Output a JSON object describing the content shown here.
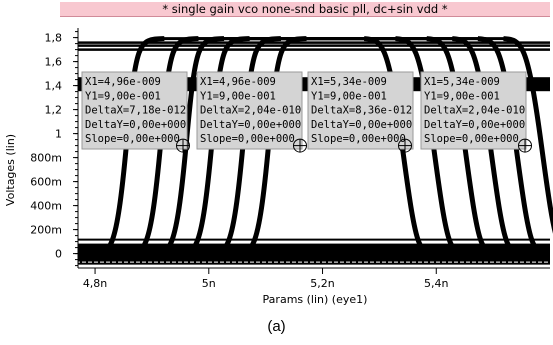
{
  "chart_data": {
    "type": "line",
    "title": "* single gain vco none-snd basic pll, dc+sin vdd *",
    "xlabel": "Params (lin) (eye1)",
    "ylabel": "Voltages (lin)",
    "xlim": [
      4.77e-09,
      5.6e-09
    ],
    "ylim": [
      -0.12,
      1.88
    ],
    "x_scale": "linear",
    "y_scale": "linear",
    "grid": false,
    "legend": "none",
    "x_ticks": [
      {
        "value": 4.8e-09,
        "label": "4,8n"
      },
      {
        "value": 5e-09,
        "label": "5n"
      },
      {
        "value": 5.2e-09,
        "label": "5,2n"
      },
      {
        "value": 5.4e-09,
        "label": "5,4n"
      }
    ],
    "y_ticks": [
      {
        "value": 1.8,
        "label": "1,8"
      },
      {
        "value": 1.6,
        "label": "1,6"
      },
      {
        "value": 1.4,
        "label": "1,4"
      },
      {
        "value": 1.2,
        "label": "1,2"
      },
      {
        "value": 1.0,
        "label": "1"
      },
      {
        "value": 0.8,
        "label": "800m"
      },
      {
        "value": 0.6,
        "label": "600m"
      },
      {
        "value": 0.4,
        "label": "400m"
      },
      {
        "value": 0.2,
        "label": "200m"
      },
      {
        "value": 0.0,
        "label": "0"
      }
    ],
    "eye_traces": {
      "low_level": 0.0,
      "high_level": 1.8,
      "rising_edges_at_0_9V": [
        4.855e-09,
        4.915e-09,
        4.96e-09,
        5.005e-09,
        5.06e-09,
        5.105e-09
      ],
      "falling_edges_at_0_9V": [
        5.34e-09,
        5.395e-09,
        5.45e-09,
        5.495e-09,
        5.54e-09,
        5.585e-09
      ]
    },
    "markers": [
      {
        "x": 4.96e-09,
        "y": 0.9,
        "lines": [
          "X1=4,96e-009",
          "Y1=9,00e-001",
          "DeltaX=7,18e-012",
          "DeltaY=0,00e+000",
          "Slope=0,00e+000"
        ]
      },
      {
        "x": 4.96e-09,
        "y": 0.9,
        "lines": [
          "X1=4,96e-009",
          "Y1=9,00e-001",
          "DeltaX=2,04e-010",
          "DeltaY=0,00e+000",
          "Slope=0,00e+000"
        ]
      },
      {
        "x": 5.34e-09,
        "y": 0.9,
        "lines": [
          "X1=5,34e-009",
          "Y1=9,00e-001",
          "DeltaX=8,36e-012",
          "DeltaY=0,00e+000",
          "Slope=0,00e+000"
        ]
      },
      {
        "x": 5.34e-09,
        "y": 0.9,
        "lines": [
          "X1=5,34e-009",
          "Y1=9,00e-001",
          "DeltaX=2,04e-010",
          "DeltaY=0,00e+000",
          "Slope=0,00e+000"
        ]
      }
    ],
    "colors": {
      "trace": "#000000",
      "marker_box": "#d4d4d4",
      "title_bar": "#f8c8d0"
    }
  },
  "caption": "(a)"
}
